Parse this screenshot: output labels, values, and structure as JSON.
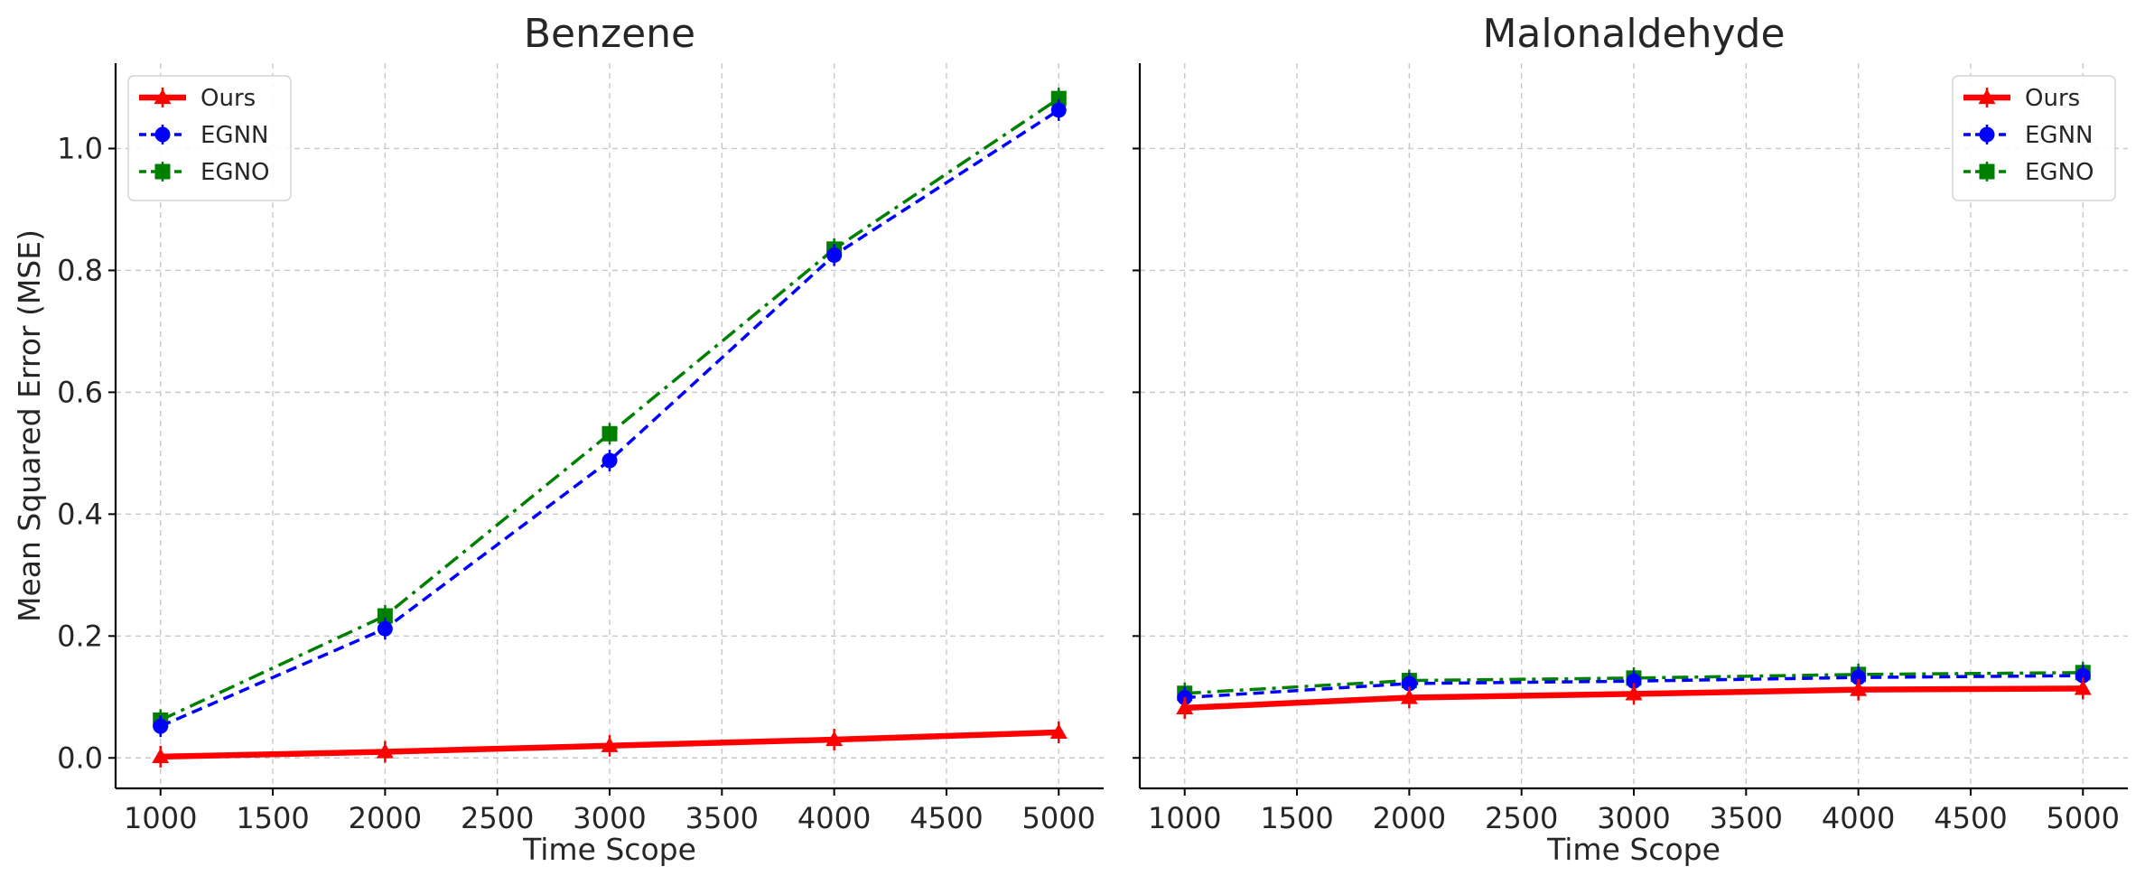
{
  "chart_data": [
    {
      "type": "line",
      "title": "Benzene",
      "xlabel": "Time Scope",
      "ylabel": "Mean Squared Error (MSE)",
      "x": [
        1000,
        2000,
        3000,
        4000,
        5000
      ],
      "xlim": [
        800,
        5200
      ],
      "ylim": [
        -0.05,
        1.14
      ],
      "xticks": [
        1000,
        1500,
        2000,
        2500,
        3000,
        3500,
        4000,
        4500,
        5000
      ],
      "yticks": [
        "0.0",
        "0.2",
        "0.4",
        "0.6",
        "0.8",
        "1.0"
      ],
      "show_yticklabels": true,
      "grid": true,
      "legend_position": "top-left",
      "series": [
        {
          "name": "Ours",
          "values": [
            0.002,
            0.01,
            0.02,
            0.03,
            0.042
          ],
          "color": "#ff0000",
          "marker": "triangle",
          "linestyle": "solid"
        },
        {
          "name": "EGNN",
          "values": [
            0.052,
            0.212,
            0.488,
            0.825,
            1.063
          ],
          "color": "#0000ff",
          "marker": "circle",
          "linestyle": "dashed"
        },
        {
          "name": "EGNO",
          "values": [
            0.062,
            0.233,
            0.532,
            0.835,
            1.082
          ],
          "color": "#008000",
          "marker": "square",
          "linestyle": "dashdot"
        }
      ]
    },
    {
      "type": "line",
      "title": "Malonaldehyde",
      "xlabel": "Time Scope",
      "ylabel": "",
      "x": [
        1000,
        2000,
        3000,
        4000,
        5000
      ],
      "xlim": [
        800,
        5200
      ],
      "ylim": [
        -0.05,
        1.14
      ],
      "xticks": [
        1000,
        1500,
        2000,
        2500,
        3000,
        3500,
        4000,
        4500,
        5000
      ],
      "yticks": [
        "0.0",
        "0.2",
        "0.4",
        "0.6",
        "0.8",
        "1.0"
      ],
      "show_yticklabels": false,
      "grid": true,
      "legend_position": "top-right",
      "series": [
        {
          "name": "Ours",
          "values": [
            0.082,
            0.099,
            0.105,
            0.112,
            0.114
          ],
          "color": "#ff0000",
          "marker": "triangle",
          "linestyle": "solid"
        },
        {
          "name": "EGNN",
          "values": [
            0.099,
            0.122,
            0.126,
            0.132,
            0.135
          ],
          "color": "#0000ff",
          "marker": "circle",
          "linestyle": "dashed"
        },
        {
          "name": "EGNO",
          "values": [
            0.106,
            0.127,
            0.131,
            0.137,
            0.14
          ],
          "color": "#008000",
          "marker": "square",
          "linestyle": "dashdot"
        }
      ]
    }
  ]
}
